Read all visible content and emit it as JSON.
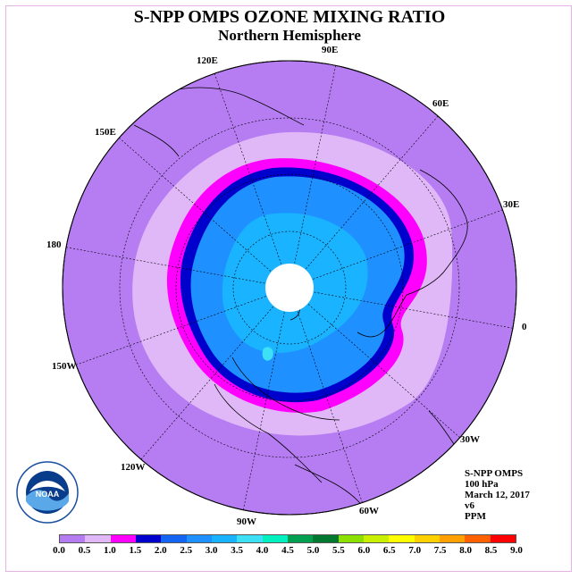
{
  "title": "S-NPP OMPS OZONE MIXING RATIO",
  "subtitle": "Northern Hemisphere",
  "longitude_labels": [
    "90E",
    "60E",
    "30E",
    "0",
    "30W",
    "60W",
    "90W",
    "120W",
    "150W",
    "180",
    "150E",
    "120E"
  ],
  "info": {
    "instrument": "S-NPP OMPS",
    "level": "100 hPa",
    "date": "March 12, 2017",
    "version": "v6",
    "units": "PPM"
  },
  "logo": {
    "text": "NOAA",
    "icon": "noaa-logo-icon"
  },
  "colorbar": {
    "ticks": [
      "0.0",
      "0.5",
      "1.0",
      "1.5",
      "2.0",
      "2.5",
      "3.0",
      "3.5",
      "4.0",
      "4.5",
      "5.0",
      "5.5",
      "6.0",
      "6.5",
      "7.0",
      "7.5",
      "8.0",
      "8.5",
      "9.0"
    ],
    "colors": [
      "#b67cf2",
      "#e0b8f8",
      "#ff00ff",
      "#0000cd",
      "#1464f4",
      "#1e90ff",
      "#1ab3ff",
      "#3ee0f5",
      "#00f0c0",
      "#00a050",
      "#007830",
      "#8ce000",
      "#c8f000",
      "#ffff00",
      "#ffd000",
      "#ffa000",
      "#ff6000",
      "#ff0000",
      "#a06040"
    ]
  },
  "colors": {
    "background_field": "#b67cf2",
    "ring_light": "#e0b8f8",
    "ring_magenta": "#ff00ff",
    "ring_blue": "#0000cd",
    "core": "#1e90ff",
    "inner": "#1ab3ff"
  }
}
